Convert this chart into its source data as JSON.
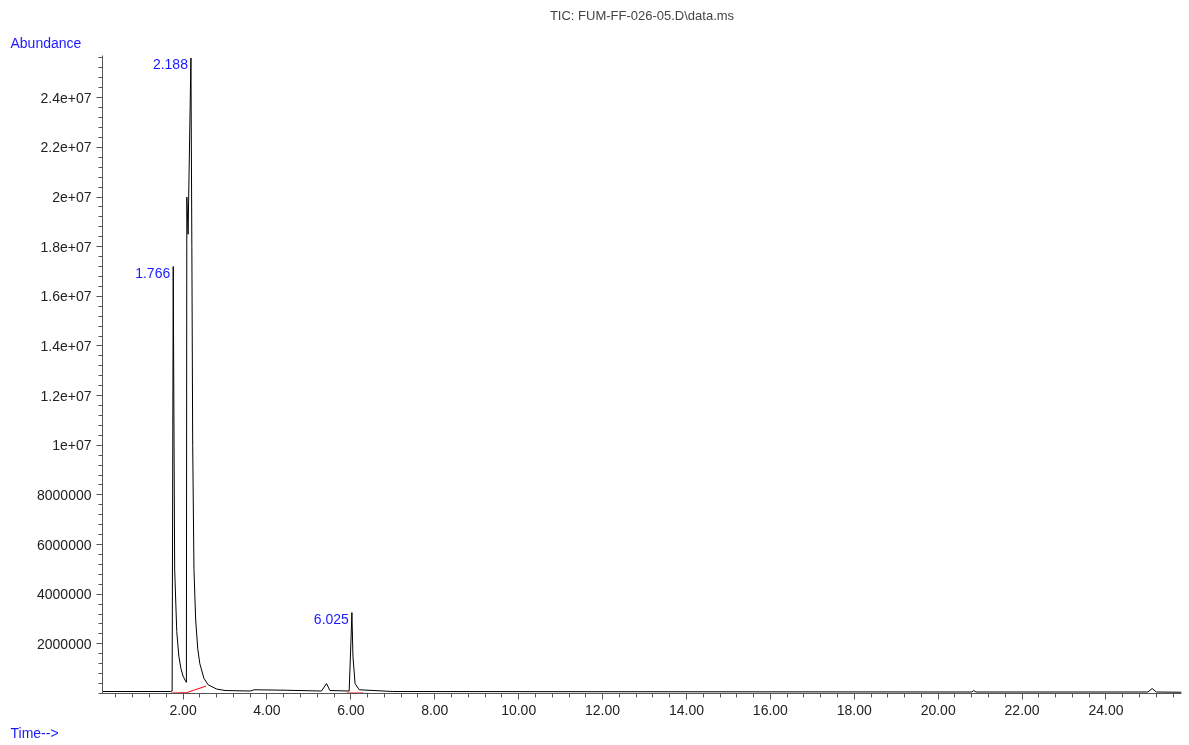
{
  "chart_data": {
    "type": "line",
    "title": "TIC: FUM-FF-026-05.D\\data.ms",
    "xlabel": "Time-->",
    "ylabel": "Abundance",
    "xlim": [
      0.08,
      25.8
    ],
    "ylim": [
      0,
      25700000
    ],
    "xticks": [
      {
        "value": 2,
        "label": "2.00"
      },
      {
        "value": 4,
        "label": "4.00"
      },
      {
        "value": 6,
        "label": "6.00"
      },
      {
        "value": 8,
        "label": "8.00"
      },
      {
        "value": 10,
        "label": "10.00"
      },
      {
        "value": 12,
        "label": "12.00"
      },
      {
        "value": 14,
        "label": "14.00"
      },
      {
        "value": 16,
        "label": "16.00"
      },
      {
        "value": 18,
        "label": "18.00"
      },
      {
        "value": 20,
        "label": "20.00"
      },
      {
        "value": 22,
        "label": "22.00"
      },
      {
        "value": 24,
        "label": "24.00"
      }
    ],
    "yticks": [
      2000000,
      4000000,
      6000000,
      8000000,
      {
        "value": 10000000,
        "label": "1e+07"
      },
      {
        "value": 12000000,
        "label": "1.2e+07"
      },
      {
        "value": 14000000,
        "label": "1.4e+07"
      },
      {
        "value": 16000000,
        "label": "1.6e+07"
      },
      {
        "value": 18000000,
        "label": "1.8e+07"
      },
      {
        "value": 20000000,
        "label": "2e+07"
      },
      {
        "value": 22000000,
        "label": "2.2e+07"
      },
      {
        "value": 24000000,
        "label": "2.4e+07"
      }
    ],
    "grid": false,
    "series": [
      {
        "color": "#000000",
        "x": [
          0.08,
          1.7,
          1.74,
          1.766,
          1.78,
          1.8,
          1.85,
          1.9,
          1.95,
          2.0,
          2.06,
          2.08,
          2.09,
          2.12,
          2.188,
          2.21,
          2.23,
          2.26,
          2.3,
          2.35,
          2.4,
          2.5,
          2.6,
          2.8,
          3.0,
          3.6,
          3.7,
          4.5,
          5.3,
          5.42,
          5.5,
          5.96,
          6.0,
          6.025,
          6.05,
          6.1,
          6.2,
          7.0,
          20.8,
          20.85,
          20.9,
          25.0,
          25.1,
          25.2,
          25.8
        ],
        "values": [
          80000,
          80000,
          100000,
          17200000,
          12000000,
          5000000,
          2500000,
          1500000,
          1000000,
          700000,
          500000,
          450000,
          20000000,
          18500000,
          25600000,
          18000000,
          10000000,
          5000000,
          3000000,
          1800000,
          1200000,
          600000,
          350000,
          180000,
          120000,
          100000,
          150000,
          130000,
          100000,
          400000,
          120000,
          100000,
          2000000,
          3260000,
          1500000,
          400000,
          150000,
          80000,
          60000,
          120000,
          60000,
          60000,
          200000,
          60000,
          50000
        ]
      },
      {
        "color": "#ff0000",
        "x": [
          1.72,
          2.08,
          2.55,
          3.0,
          5.9,
          6.3
        ],
        "values": [
          20000,
          30000,
          300000,
          null,
          20000,
          20000
        ]
      }
    ],
    "annotations": [
      {
        "text": "1.766",
        "x": 1.766,
        "y": 17200000
      },
      {
        "text": "2.188",
        "x": 2.188,
        "y": 25600000
      },
      {
        "text": "6.025",
        "x": 6.025,
        "y": 3260000
      }
    ]
  }
}
